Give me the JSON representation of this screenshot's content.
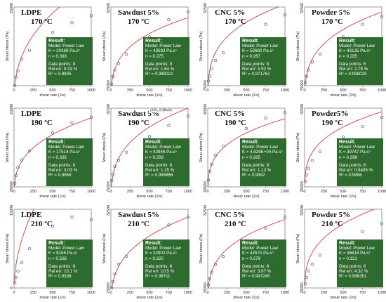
{
  "chart_data": [
    {
      "id": "p1",
      "type": "scatter",
      "title": "LDPE",
      "temperature": "170 ºC",
      "xlabel": "shear rate (1/s)",
      "ylabel": "Shear stress (Pa)",
      "xlim": [
        0,
        1000
      ],
      "ylim": [
        50000,
        250000
      ],
      "xticks": [
        "0",
        "250",
        "500",
        "750",
        "1000"
      ],
      "yticks": [
        "250000"
      ],
      "points": {
        "x": [
          10,
          25,
          50,
          100,
          200,
          500,
          750,
          1000
        ],
        "y": [
          50000,
          72000,
          88000,
          117000,
          140000,
          185000,
          210000,
          228000
        ]
      },
      "fit": {
        "K": 20389,
        "n": 0.393
      },
      "result": {
        "heading": "Result:",
        "model": "Model: Power Law",
        "k": "K = 20389 Pa.sⁿ",
        "n": "n = 0.393",
        "data_points": "Data points: 8",
        "rel_err": "Rel err: 5.33 %",
        "r2": "R² = 0.9905"
      }
    },
    {
      "id": "p2",
      "type": "scatter",
      "title": "Sawdust 5%",
      "temperature": "170 ºC",
      "xlabel": "shear rate (1/s)",
      "ylabel": "Shear stress (Pa)",
      "xlim": [
        0,
        1000
      ],
      "ylim": [
        75000,
        325000
      ],
      "xticks": [
        "0",
        "250",
        "500",
        "750",
        "1000"
      ],
      "yticks": [
        "325000",
        "75000"
      ],
      "points": {
        "x": [
          10,
          25,
          50,
          100,
          200,
          500,
          750,
          1000
        ],
        "y": [
          80000,
          105000,
          125000,
          145000,
          175000,
          230000,
          285000,
          310000
        ]
      },
      "fit": {
        "K": 43583,
        "n": 0.275
      },
      "result": {
        "heading": "Result:",
        "model": "Model: Power Law",
        "k": "K = 43583 Pa.sⁿ",
        "n": "n = 0.275",
        "data_points": "Data points: 8",
        "rel_err": "Rel err: 1.64 %",
        "r2": "R² = 0.998022"
      }
    },
    {
      "id": "p3",
      "type": "scatter",
      "title": "CNC 5%",
      "temperature": "170 ºC",
      "xlabel": "shear rate (1/s)",
      "ylabel": "Shear stress (Pa)",
      "xlim": [
        0,
        1000
      ],
      "ylim": [
        75000,
        325000
      ],
      "xticks": [
        "0",
        "250",
        "500",
        "750",
        "1000"
      ],
      "yticks": [
        "325000",
        "75000"
      ],
      "points": {
        "x": [
          10,
          25,
          50,
          100,
          200,
          500,
          750,
          1000
        ],
        "y": [
          90000,
          105000,
          130000,
          155000,
          180000,
          225000,
          270000,
          300000
        ]
      },
      "fit": {
        "K": 52680,
        "n": 0.267
      },
      "result": {
        "heading": "Result:",
        "model": "Model: Power Law",
        "k": "K = 52680 Pa.sⁿ",
        "n": "n = 0.267",
        "data_points": "Data points: 8",
        "rel_err": "Rel err: 5.92 %",
        "r2": "R² = 0.971762"
      }
    },
    {
      "id": "p4",
      "type": "scatter",
      "title": "Powder 5%",
      "temperature": "170 ºC",
      "xlabel": "shear rate (1/s)",
      "ylabel": "Shear stress (Pa)",
      "xlim": [
        0,
        1000
      ],
      "ylim": [
        75000,
        325000
      ],
      "xticks": [
        "0",
        "250",
        "500",
        "750",
        "1000"
      ],
      "yticks": [
        "325000",
        "75000"
      ],
      "points": {
        "x": [
          10,
          25,
          50,
          100,
          200,
          500,
          750,
          1000
        ],
        "y": [
          85000,
          105000,
          125000,
          150000,
          175000,
          230000,
          270000,
          295000
        ]
      },
      "fit": {
        "K": 43135,
        "n": 0.285
      },
      "result": {
        "heading": "Result:",
        "model": "Model: Power Law",
        "k": "K = 43135 Pa.sⁿ",
        "n": "n = 0.285",
        "data_points": "Data points: 8",
        "rel_err": "Rel err: 2.78 %",
        "r2": "R² = 0.998025"
      }
    },
    {
      "id": "p5",
      "type": "scatter",
      "title": "LDPE",
      "temperature": "190 ºC",
      "xlabel": "shear rate (1/s)",
      "ylabel": "Shear stress (Pa)",
      "xlim": [
        0,
        1000
      ],
      "ylim": [
        25000,
        200000
      ],
      "xticks": [
        "0",
        "250",
        "500",
        "750",
        "1000"
      ],
      "yticks": [
        "200000",
        "25000"
      ],
      "points": {
        "x": [
          10,
          25,
          50,
          100,
          200,
          500,
          750,
          1000
        ],
        "y": [
          33000,
          50000,
          68000,
          85000,
          105000,
          145000,
          168000,
          180000
        ]
      },
      "fit": {
        "K": 17514,
        "n": 0.336
      },
      "result": {
        "heading": "Result:",
        "model": "Model: Power Law",
        "k": "K = 17514 Pa.sⁿ",
        "n": "n = 0.336",
        "data_points": "Data points: 8",
        "rel_err": "Rel err: 3.03 %",
        "r2": "R² = 0.9969"
      }
    },
    {
      "id": "p6",
      "type": "scatter",
      "title": "Sawdust 5%",
      "temperature": "190 ºC",
      "xlabel": "shear rate (1/s)",
      "ylabel": "Shear stress (Pa)",
      "xlim": [
        0,
        1000
      ],
      "ylim": [
        75000,
        325000
      ],
      "xticks": [
        "0",
        "250",
        "500",
        "750",
        "1000"
      ],
      "yticks": [
        "325000",
        "75000"
      ],
      "points": {
        "x": [
          10,
          25,
          50,
          100,
          200,
          500,
          750,
          1000
        ],
        "y": [
          95000,
          115000,
          140000,
          160000,
          185000,
          235000,
          270000,
          300000
        ]
      },
      "fit": {
        "K": 42946,
        "n": 0.293
      },
      "tooltip": "(200, 2.98e05",
      "result": {
        "heading": "Result:",
        "model": "Model: Power Law",
        "k": "K = 42946 Pa.sⁿ",
        "n": "n = 0.293",
        "data_points": "Data points: 8",
        "rel_err": "Rel err: 1.15 %",
        "r2": "R² = 0.998866"
      }
    },
    {
      "id": "p7",
      "type": "scatter",
      "title": "CNC 5%",
      "temperature": "190 ºC",
      "xlabel": "shear rate (1/s)",
      "ylabel": "Shear stress (Pa)",
      "xlim": [
        0,
        1000
      ],
      "ylim": [
        50000,
        400000
      ],
      "xticks": [
        "0",
        "250",
        "500",
        "750",
        "1000"
      ],
      "yticks": [
        "400000",
        "50000"
      ],
      "points": {
        "x": [
          10,
          25,
          50,
          100,
          200,
          500,
          750,
          1000
        ],
        "y": [
          80000,
          120000,
          150000,
          190000,
          230000,
          310000,
          355000,
          380000
        ]
      },
      "fit": {
        "K": 49290,
        "n": 0.285
      },
      "result": {
        "heading": "Result:",
        "model": "Model: Power Law",
        "k": "K = 4.929E+04 Pa.sⁿ",
        "n": "n = 0.285",
        "data_points": "Data points: 8",
        "rel_err": "Rel err: 1.13 %",
        "r2": "R² = 0.9992"
      }
    },
    {
      "id": "p8",
      "type": "scatter",
      "title": "Powder5%",
      "temperature": "190 ºC",
      "xlabel": "shear rate (1/s)",
      "ylabel": "Shear stress (Pa)",
      "xlim": [
        0,
        1000
      ],
      "ylim": [
        25000,
        325000
      ],
      "xticks": [
        "0",
        "250",
        "500",
        "750",
        "1000"
      ],
      "yticks": [
        "325000",
        "25000"
      ],
      "points": {
        "x": [
          10,
          25,
          50,
          100,
          200,
          500,
          750,
          1000
        ],
        "y": [
          45000,
          70000,
          95000,
          125000,
          160000,
          215000,
          255000,
          290000
        ]
      },
      "fit": {
        "K": 39747,
        "n": 0.298
      },
      "result": {
        "heading": "Result:",
        "model": "Model: Power Law",
        "k": "K = 39747 Pa.sⁿ",
        "n": "n = 0.298",
        "data_points": "Data points: 8",
        "rel_err": "Rel err: 0.6435 %",
        "r2": "R² = 0.9996"
      }
    },
    {
      "id": "p9",
      "type": "scatter",
      "title": "LDPE",
      "temperature": "210 ºC",
      "xlabel": "shear rate (1/s)",
      "ylabel": "Shear stress (Pa)",
      "xlim": [
        0,
        1000
      ],
      "ylim": [
        0,
        150000
      ],
      "xticks": [
        "0",
        "250",
        "500",
        "750",
        "1000"
      ],
      "yticks": [
        "150000",
        "0"
      ],
      "points": {
        "x": [
          10,
          25,
          50,
          100,
          200,
          500,
          750,
          1000
        ],
        "y": [
          10000,
          20000,
          32000,
          48000,
          75000,
          118000,
          135000,
          130000
        ]
      },
      "fit": {
        "K": 8155,
        "n": 0.526
      },
      "result": {
        "heading": "Result:",
        "model": "Model: Power Law",
        "k": "K = 8155 Pa.sⁿ",
        "n": "n = 0.526",
        "data_points": "Data points: 8",
        "rel_err": "Rel err: 15.1 %",
        "r2": "R² = 0.9336"
      }
    },
    {
      "id": "p10",
      "type": "scatter",
      "title": "Sawdust 5%",
      "temperature": "210 ºC",
      "xlabel": "shear rate (1/s)",
      "ylabel": "Shear stress (Pa)",
      "xlim": [
        0,
        1000
      ],
      "ylim": [
        75000,
        325000
      ],
      "xticks": [
        "0",
        "250",
        "500",
        "750",
        "1000"
      ],
      "yticks": [
        "325000",
        "75000"
      ],
      "points": {
        "x": [
          10,
          25,
          50,
          100,
          200,
          500,
          750,
          1000
        ],
        "y": [
          75000,
          95000,
          120000,
          150000,
          175000,
          225000,
          275000,
          300000
        ]
      },
      "fit": {
        "K": 32902,
        "n": 0.32
      },
      "result": {
        "heading": "Result:",
        "model": "Model: Power Law",
        "k": "K = 32902 Pa.sⁿ",
        "n": "n = 0.320",
        "data_points": "Data points: 8",
        "rel_err": "Rel err: 10.5 %",
        "r2": "R² = 0.98711"
      }
    },
    {
      "id": "p11",
      "type": "scatter",
      "title": "CNC 5%",
      "temperature": "210 ºC",
      "xlabel": "shear rate (1/s)",
      "ylabel": "Shear stress (Pa)",
      "xlim": [
        0,
        1000
      ],
      "ylim": [
        75000,
        325000
      ],
      "xticks": [
        "0",
        "250",
        "500",
        "750",
        "1000"
      ],
      "yticks": [
        "325000",
        "75000"
      ],
      "points": {
        "x": [
          10,
          25,
          50,
          100,
          200,
          500,
          750,
          1000
        ],
        "y": [
          85000,
          105000,
          125000,
          150000,
          175000,
          225000,
          265000,
          300000
        ]
      },
      "fit": {
        "K": 42570,
        "n": 0.279
      },
      "result": {
        "heading": "Result:",
        "model": "Model: Power Law",
        "k": "K = 42570 Pa.sⁿ",
        "n": "n = 0.279",
        "data_points": "Data points: 8",
        "rel_err": "Rel err: 3.67 %",
        "r2": "R² = 0.997245"
      }
    },
    {
      "id": "p12",
      "type": "scatter",
      "title": "Powder 5%",
      "temperature": "210 ºC",
      "xlabel": "shear rate (1/s)",
      "ylabel": "Shear stress (Pa)",
      "xlim": [
        0,
        1000
      ],
      "ylim": [
        25000,
        325000
      ],
      "xticks": [
        "0",
        "250",
        "500",
        "750",
        "1000"
      ],
      "yticks": [
        "325000",
        "25000"
      ],
      "points": {
        "x": [
          10,
          25,
          50,
          100,
          200,
          500,
          750,
          1000
        ],
        "y": [
          40000,
          65000,
          90000,
          115000,
          150000,
          205000,
          240000,
          270000
        ]
      },
      "fit": {
        "K": 36618,
        "n": 0.321
      },
      "result": {
        "heading": "Result:",
        "model": "Model: Power Law",
        "k": "K = 36618 Pa.sⁿ",
        "n": "n = 0.321",
        "data_points": "Data points: 8",
        "rel_err": "Rel err: 4.32 %",
        "r2": "R² = 0.996351"
      }
    }
  ]
}
